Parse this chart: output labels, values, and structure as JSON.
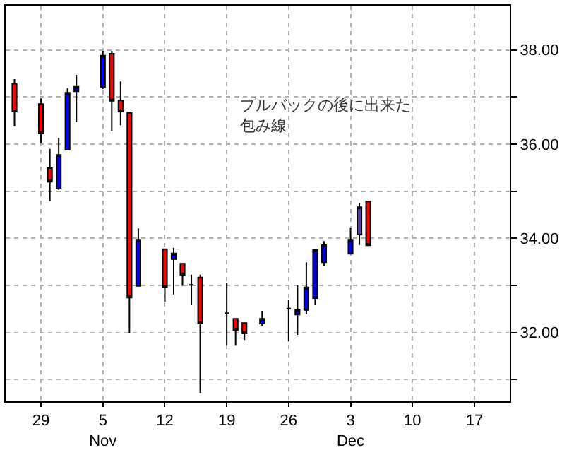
{
  "chart_data": {
    "type": "candlestick",
    "x": [
      "--10-26",
      "--10-29",
      "--10-30",
      "--10-31",
      "--11-01",
      "--11-02",
      "--11-05",
      "--11-06",
      "--11-07",
      "--11-08",
      "--11-09",
      "--11-12",
      "--11-13",
      "--11-14",
      "--11-15",
      "--11-16",
      "--11-19",
      "--11-20",
      "--11-21",
      "--11-23",
      "--11-26",
      "--11-27",
      "--11-28",
      "--11-29",
      "--11-30",
      "--12-03",
      "--12-04",
      "--12-05"
    ],
    "ohlc": [
      [
        37.28,
        37.38,
        36.38,
        36.69
      ],
      [
        36.85,
        36.97,
        36.02,
        36.23
      ],
      [
        35.49,
        35.9,
        34.79,
        35.2
      ],
      [
        35.06,
        36.13,
        35.03,
        35.77
      ],
      [
        35.88,
        37.19,
        35.88,
        37.09
      ],
      [
        37.12,
        37.47,
        36.47,
        37.22
      ],
      [
        37.21,
        37.98,
        37.17,
        37.88
      ],
      [
        37.92,
        37.98,
        36.28,
        36.92
      ],
      [
        36.93,
        37.33,
        36.4,
        36.69
      ],
      [
        36.66,
        36.69,
        31.98,
        32.74
      ],
      [
        32.99,
        34.21,
        32.99,
        33.97
      ],
      [
        33.77,
        33.77,
        32.65,
        32.96
      ],
      [
        33.56,
        33.8,
        32.81,
        33.68
      ],
      [
        33.46,
        33.46,
        32.99,
        33.22
      ],
      [
        33.01,
        33.23,
        32.58,
        33.01
      ],
      [
        33.17,
        33.23,
        30.72,
        32.19
      ],
      [
        32.41,
        33.05,
        31.72,
        32.41
      ],
      [
        32.29,
        32.29,
        31.72,
        32.05
      ],
      [
        32.2,
        32.2,
        31.84,
        31.98
      ],
      [
        32.19,
        32.46,
        32.13,
        32.29
      ],
      [
        32.51,
        32.7,
        31.81,
        32.51
      ],
      [
        32.38,
        33.0,
        31.95,
        32.49
      ],
      [
        32.48,
        33.49,
        32.39,
        32.96
      ],
      [
        32.73,
        33.75,
        32.58,
        33.75
      ],
      [
        33.49,
        33.94,
        33.42,
        33.86
      ],
      [
        33.67,
        34.23,
        33.67,
        33.97
      ],
      [
        34.08,
        34.75,
        33.86,
        34.66
      ],
      [
        34.78,
        34.8,
        33.85,
        33.85
      ]
    ],
    "colors": [
      "#ff0000",
      "#ff0000",
      "#ff0000",
      "#0000ff",
      "#0000ff",
      "#0000ff",
      "#0000ff",
      "#ff0000",
      "#ff0000",
      "#ff0000",
      "#0000ff",
      "#ff0000",
      "#0000ff",
      "#ff0000",
      "#000000",
      "#ff0000",
      "#000000",
      "#ff0000",
      "#ff0000",
      "#0000ff",
      "#000000",
      "#0000ff",
      "#0000ff",
      "#0000ff",
      "#0000ff",
      "#0000ff",
      "#5a3fb0",
      "#ff0000"
    ],
    "xlim": [
      "--10-25",
      "--12-21"
    ],
    "xticks": [
      {
        "value": "--10-29",
        "label": "29"
      },
      {
        "value": "--11-05",
        "label": "5\nNov"
      },
      {
        "value": "--11-12",
        "label": "12"
      },
      {
        "value": "--11-19",
        "label": "19"
      },
      {
        "value": "--11-26",
        "label": "26"
      },
      {
        "value": "--12-03",
        "label": "3\nDec"
      },
      {
        "value": "--12-10",
        "label": "10"
      },
      {
        "value": "--12-17",
        "label": "17"
      }
    ],
    "ylim": [
      30.54,
      38.94
    ],
    "yticks": [
      {
        "value": 31,
        "label": null
      },
      {
        "value": 32,
        "label": "32.00"
      },
      {
        "value": 33,
        "label": null
      },
      {
        "value": 34,
        "label": "34.00"
      },
      {
        "value": 35,
        "label": null
      },
      {
        "value": 36,
        "label": "36.00"
      },
      {
        "value": 37,
        "label": null
      },
      {
        "value": 38,
        "label": "38.00"
      }
    ],
    "grid": true,
    "annotations": [
      "プルバックの後に出来た包み線"
    ]
  }
}
